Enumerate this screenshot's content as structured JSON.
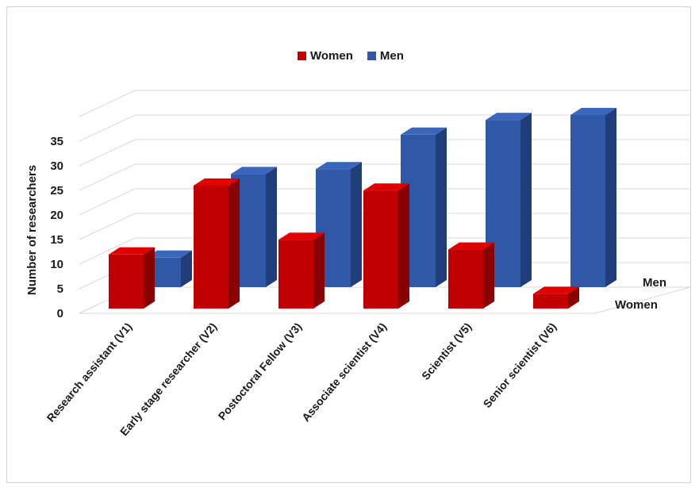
{
  "chart_data": {
    "type": "bar",
    "subtype": "3d-clustered-depth",
    "categories": [
      "Research assistant (V1)",
      "Early stage researcher (V2)",
      "Postoctoral Fellow (V3)",
      "Associate scientist (V4)",
      "Scientist (V5)",
      "Senior scientist (V6)"
    ],
    "series": [
      {
        "name": "Women",
        "values": [
          11,
          25,
          14,
          24,
          12,
          3
        ]
      },
      {
        "name": "Men",
        "values": [
          6,
          23,
          24,
          31,
          34,
          35
        ]
      }
    ],
    "ylabel": "Number of researchers",
    "xlabel": "",
    "ylim": [
      0,
      35
    ],
    "yticks": [
      0,
      5,
      10,
      15,
      20,
      25,
      30,
      35
    ],
    "depth_labels": [
      "Men",
      "Women"
    ],
    "legend": "top-center",
    "grid": true
  },
  "legend": {
    "items": [
      {
        "label": "Women",
        "color": "#c00000"
      },
      {
        "label": "Men",
        "color": "#2f58a7"
      }
    ]
  },
  "colors": {
    "women_front": "#c00000",
    "women_side": "#8a0000",
    "women_top": "#e00000",
    "men_front": "#2f58a7",
    "men_side": "#1f3d78",
    "men_top": "#3a66bb"
  }
}
